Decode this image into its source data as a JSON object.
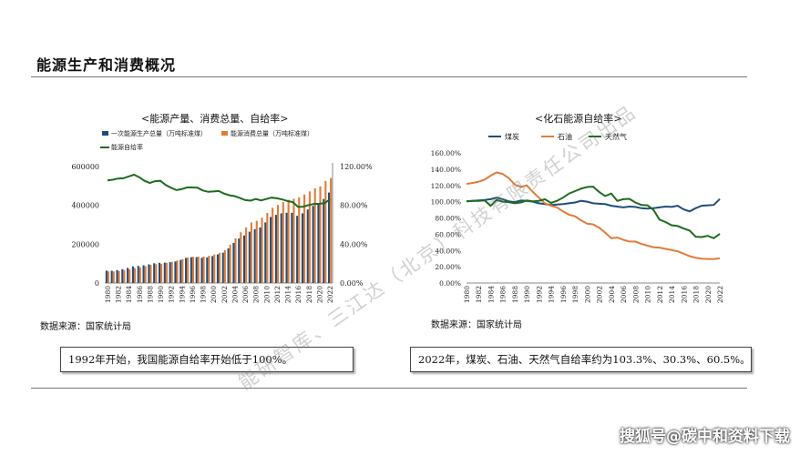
{
  "page": {
    "title": "能源生产和消费概况",
    "watermark": "能研智库、三江达（北京）科技有限责任公司出品",
    "footer_mark": "搜狐号@碳中和资料下载"
  },
  "notes": {
    "left": "1992年开始，我国能源自给率开始低于100%。",
    "right": "2022年，煤炭、石油、天然气自给率约为103.3%、30.3%、60.5%。"
  },
  "colors": {
    "production": "#1f4e79",
    "consumption": "#e07b39",
    "self_sufficiency": "#1e6b1e",
    "coal": "#1f4e79",
    "oil": "#e07b39",
    "gas": "#1e6b1e"
  },
  "chart_data": [
    {
      "type": "bar",
      "title": "<能源产量、消费总量、自给率>",
      "source": "数据来源：国家统计局",
      "x": [
        1980,
        1981,
        1982,
        1983,
        1984,
        1985,
        1986,
        1987,
        1988,
        1989,
        1990,
        1991,
        1992,
        1993,
        1994,
        1995,
        1996,
        1997,
        1998,
        1999,
        2000,
        2001,
        2002,
        2003,
        2004,
        2005,
        2006,
        2007,
        2008,
        2009,
        2010,
        2011,
        2012,
        2013,
        2014,
        2015,
        2016,
        2017,
        2018,
        2019,
        2020,
        2021,
        2022
      ],
      "x_tick_labels": [
        "1980",
        "1982",
        "1984",
        "1986",
        "1988",
        "1990",
        "1992",
        "1994",
        "1996",
        "1998",
        "2000",
        "2002",
        "2004",
        "2006",
        "2008",
        "2010",
        "2012",
        "2014",
        "2016",
        "2018",
        "2020",
        "2022"
      ],
      "y_ticks": [
        "0",
        "200000",
        "400000",
        "600000"
      ],
      "y2_ticks": [
        "0.00%",
        "40.00%",
        "80.00%",
        "120.00%"
      ],
      "ylim": [
        0,
        600000
      ],
      "y2lim": [
        0,
        120
      ],
      "series": [
        {
          "name": "一次能源生产总量（万吨标准煤）",
          "kind": "bar",
          "values": [
            63735,
            63227,
            66778,
            71270,
            77855,
            85546,
            88124,
            91266,
            95801,
            101639,
            103922,
            104844,
            107256,
            111059,
            118729,
            129034,
            133032,
            133460,
            129834,
            131935,
            138570,
            147425,
            156277,
            178299,
            206108,
            229037,
            244763,
            264173,
            277419,
            286092,
            312125,
            340178,
            351041,
            358784,
            361866,
            361476,
            345954,
            358867,
            378859,
            397317,
            407295,
            433000,
            466000
          ]
        },
        {
          "name": "能源消费总量（万吨标准煤）",
          "kind": "bar",
          "values": [
            60275,
            59447,
            62067,
            66040,
            70904,
            76682,
            80850,
            86632,
            92997,
            96934,
            98703,
            103783,
            109170,
            115993,
            122737,
            131176,
            135192,
            135909,
            136184,
            140569,
            146964,
            155547,
            169577,
            197083,
            230281,
            261369,
            286467,
            311442,
            320611,
            336126,
            360648,
            387043,
            402138,
            416913,
            428334,
            434113,
            441492,
            455827,
            471925,
            487488,
            498314,
            525896,
            541000
          ]
        },
        {
          "name": "能源自给率",
          "kind": "line",
          "axis": "right",
          "values": [
            105.7,
            106.4,
            107.6,
            107.9,
            109.8,
            111.6,
            109.0,
            105.3,
            103.0,
            104.9,
            105.3,
            101.0,
            98.2,
            95.7,
            96.7,
            98.4,
            98.4,
            98.2,
            95.3,
            93.9,
            94.3,
            94.8,
            92.2,
            90.5,
            89.5,
            87.6,
            85.4,
            84.8,
            86.5,
            85.1,
            86.5,
            87.9,
            87.3,
            86.1,
            84.5,
            83.3,
            78.4,
            78.7,
            80.3,
            81.5,
            81.7,
            82.3,
            86.1
          ]
        }
      ]
    },
    {
      "type": "line",
      "title": "<化石能源自给率>",
      "source": "数据来源：国家统计局",
      "x": [
        1980,
        1981,
        1982,
        1983,
        1984,
        1985,
        1986,
        1987,
        1988,
        1989,
        1990,
        1991,
        1992,
        1993,
        1994,
        1995,
        1996,
        1997,
        1998,
        1999,
        2000,
        2001,
        2002,
        2003,
        2004,
        2005,
        2006,
        2007,
        2008,
        2009,
        2010,
        2011,
        2012,
        2013,
        2014,
        2015,
        2016,
        2017,
        2018,
        2019,
        2020,
        2021,
        2022
      ],
      "x_tick_labels": [
        "1980",
        "1982",
        "1984",
        "1986",
        "1988",
        "1990",
        "1992",
        "1994",
        "1996",
        "1998",
        "2000",
        "2002",
        "2004",
        "2006",
        "2008",
        "2010",
        "2012",
        "2014",
        "2016",
        "2018",
        "2020",
        "2022"
      ],
      "y_ticks": [
        "0.00%",
        "20.00%",
        "40.00%",
        "60.00%",
        "80.00%",
        "100.00%",
        "120.00%",
        "140.00%",
        "160.00%"
      ],
      "ylim": [
        0,
        160
      ],
      "series": [
        {
          "name": "煤炭",
          "values": [
            100.5,
            101.0,
            101.5,
            102.0,
            103.0,
            105.0,
            103.0,
            100.5,
            99.5,
            101.5,
            101.0,
            100.0,
            98.0,
            97.0,
            96.0,
            96.5,
            97.0,
            98.0,
            99.0,
            101.0,
            100.0,
            98.0,
            97.5,
            97.0,
            95.0,
            94.0,
            93.0,
            94.0,
            93.5,
            92.0,
            91.5,
            92.0,
            93.0,
            94.0,
            93.5,
            95.0,
            90.5,
            88.0,
            92.0,
            95.0,
            95.5,
            96.0,
            103.3
          ]
        },
        {
          "name": "石油",
          "values": [
            122.0,
            123.0,
            124.5,
            127.0,
            132.0,
            136.0,
            134.0,
            129.0,
            121.0,
            118.0,
            120.0,
            112.0,
            105.0,
            98.0,
            95.0,
            93.0,
            88.0,
            84.0,
            82.0,
            77.0,
            73.0,
            72.0,
            68.0,
            62.0,
            55.0,
            56.0,
            53.0,
            51.0,
            51.0,
            48.0,
            46.0,
            44.0,
            43.5,
            42.0,
            40.5,
            39.0,
            36.0,
            33.0,
            31.0,
            30.0,
            29.5,
            29.5,
            30.3
          ]
        },
        {
          "name": "天然气",
          "values": [
            100.5,
            101.0,
            101.0,
            101.5,
            95.0,
            102.0,
            100.0,
            99.5,
            98.0,
            99.0,
            101.5,
            100.5,
            101.0,
            103.0,
            98.5,
            101.0,
            105.0,
            110.0,
            113.0,
            116.0,
            118.0,
            118.5,
            112.0,
            107.0,
            110.0,
            101.0,
            103.0,
            103.5,
            99.0,
            96.0,
            95.5,
            90.0,
            78.0,
            75.0,
            71.0,
            70.0,
            67.0,
            64.5,
            57.0,
            56.5,
            58.0,
            55.0,
            60.5
          ]
        }
      ]
    }
  ]
}
